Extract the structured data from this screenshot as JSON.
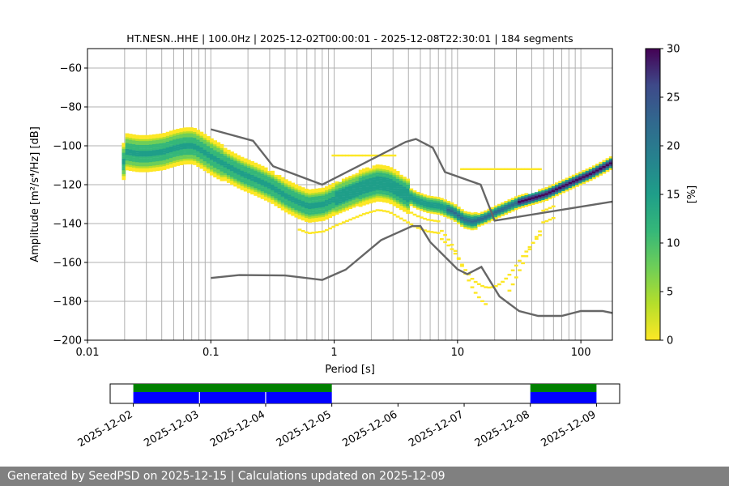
{
  "chart_data": {
    "type": "heatmap",
    "title": "HT.NESN..HHE | 100.0Hz | 2025-12-02T00:00:01 - 2025-12-08T22:30:01 | 184 segments",
    "xlabel": "Period [s]",
    "ylabel": "Amplitude [m²/s⁴/Hz] [dB]",
    "x_scale": "log",
    "xlim": [
      0.01,
      180
    ],
    "ylim": [
      -200,
      -50
    ],
    "x_ticks": [
      "0.01",
      "0.1",
      "1",
      "10",
      "100"
    ],
    "y_ticks": [
      "−60",
      "−80",
      "−100",
      "−120",
      "−140",
      "−160",
      "−180",
      "−200"
    ],
    "grid": true,
    "colorbar": {
      "label": "[%]",
      "ticks": [
        "0",
        "5",
        "10",
        "15",
        "20",
        "25",
        "30"
      ],
      "range": [
        0,
        30
      ],
      "colormap": "viridis_r"
    },
    "mode_curve": [
      [
        0.02,
        -103
      ],
      [
        0.025,
        -104
      ],
      [
        0.03,
        -104
      ],
      [
        0.04,
        -103
      ],
      [
        0.05,
        -101
      ],
      [
        0.06,
        -100
      ],
      [
        0.07,
        -100
      ],
      [
        0.08,
        -102
      ],
      [
        0.1,
        -106
      ],
      [
        0.13,
        -110
      ],
      [
        0.17,
        -114
      ],
      [
        0.22,
        -117
      ],
      [
        0.3,
        -121
      ],
      [
        0.4,
        -126
      ],
      [
        0.5,
        -129
      ],
      [
        0.6,
        -131
      ],
      [
        0.8,
        -130
      ],
      [
        1,
        -127
      ],
      [
        1.3,
        -124
      ],
      [
        1.7,
        -121
      ],
      [
        2.2,
        -119
      ],
      [
        2.7,
        -120
      ],
      [
        3.5,
        -124
      ],
      [
        4.5,
        -128
      ],
      [
        5.5,
        -130
      ],
      [
        7,
        -131
      ],
      [
        9,
        -134
      ],
      [
        11,
        -138
      ],
      [
        13,
        -139
      ],
      [
        16,
        -137
      ],
      [
        20,
        -134
      ],
      [
        30,
        -129
      ],
      [
        50,
        -125
      ],
      [
        80,
        -119
      ],
      [
        120,
        -114
      ],
      [
        180,
        -108
      ]
    ],
    "nlnm": [
      [
        0.1,
        -168
      ],
      [
        0.17,
        -166.5
      ],
      [
        0.4,
        -166.7
      ],
      [
        0.8,
        -169
      ],
      [
        1.24,
        -163.7
      ],
      [
        2.4,
        -148.5
      ],
      [
        4.3,
        -141.3
      ],
      [
        5.0,
        -141.3
      ],
      [
        6.0,
        -149.5
      ],
      [
        10,
        -163.5
      ],
      [
        12,
        -166
      ],
      [
        15.6,
        -162.3
      ],
      [
        21.9,
        -177.5
      ],
      [
        31.6,
        -185
      ],
      [
        45,
        -187.5
      ],
      [
        70,
        -187.5
      ],
      [
        100,
        -185
      ],
      [
        150,
        -185
      ],
      [
        180,
        -186
      ]
    ],
    "nhnm": [
      [
        0.1,
        -91.5
      ],
      [
        0.22,
        -97.4
      ],
      [
        0.32,
        -110.5
      ],
      [
        0.8,
        -120
      ],
      [
        3.8,
        -98
      ],
      [
        4.6,
        -96.5
      ],
      [
        6.3,
        -101
      ],
      [
        7.9,
        -113.5
      ],
      [
        15.4,
        -120
      ],
      [
        20,
        -138.5
      ],
      [
        180,
        -128.7
      ]
    ]
  },
  "timeline": {
    "dates": [
      "2025-12-02",
      "2025-12-03",
      "2025-12-04",
      "2025-12-05",
      "2025-12-06",
      "2025-12-07",
      "2025-12-08",
      "2025-12-09"
    ],
    "start_day": -0.35,
    "end_day": 7.35,
    "coverage": [
      [
        0,
        3
      ],
      [
        6,
        7
      ]
    ],
    "segment_breaks": [
      1,
      2
    ],
    "coverage_color": "#0000ff",
    "bar_color": "#008000"
  },
  "footer": {
    "text": "Generated by SeedPSD on 2025-12-15 | Calculations updated on 2025-12-09"
  }
}
